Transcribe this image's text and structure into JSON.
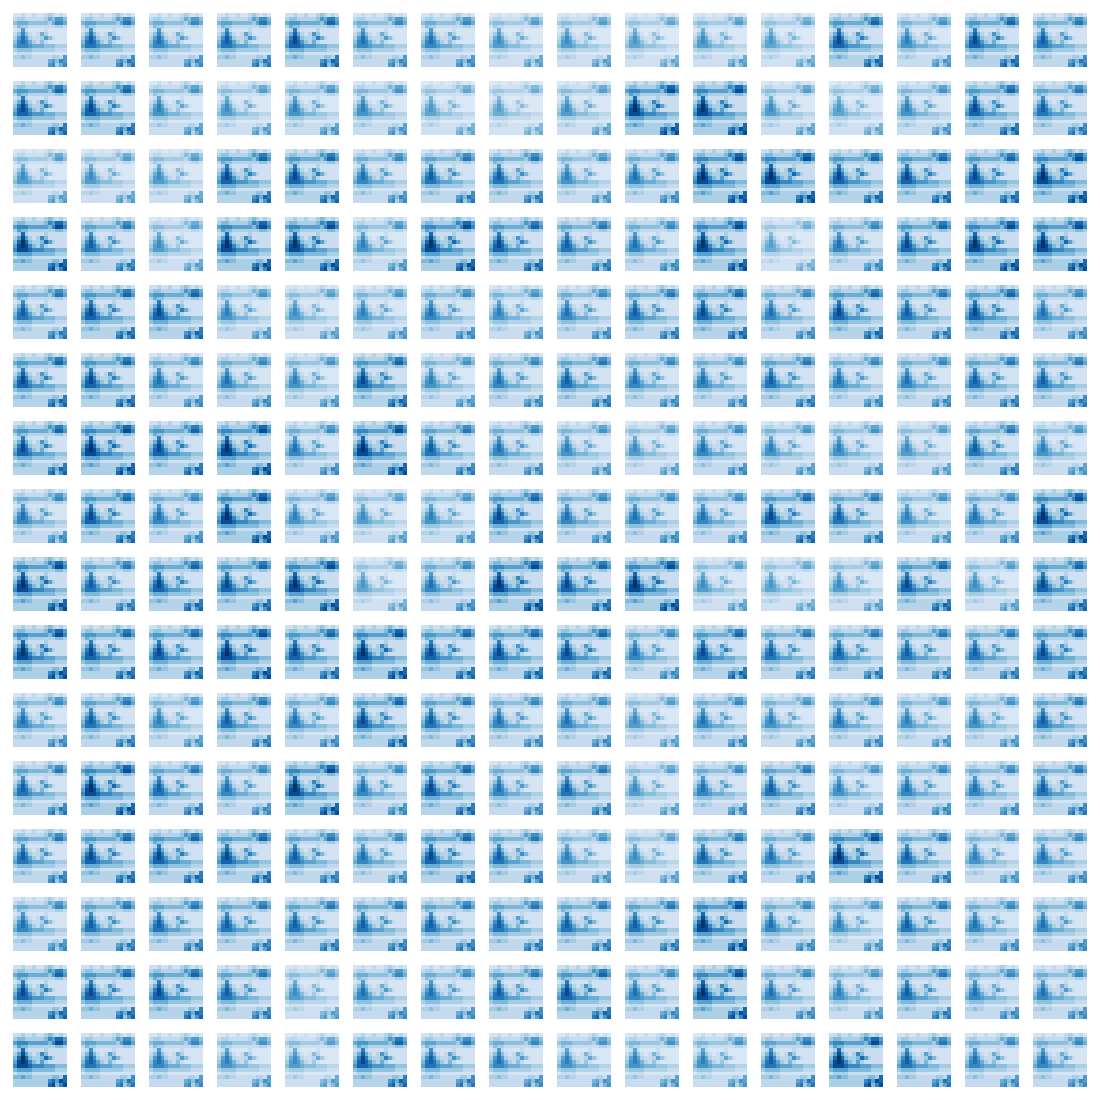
{
  "chart_data": {
    "type": "heatmap",
    "color": "Blues",
    "tick_labels": false,
    "rows": 16,
    "cols": 16,
    "cells": [
      [
        2,
        2,
        3,
        2,
        2,
        3,
        2,
        2,
        3,
        4,
        3,
        2,
        3,
        2
      ],
      [
        3,
        4,
        4,
        3,
        3,
        3,
        3,
        3,
        4,
        6,
        5,
        7,
        7,
        5
      ],
      [
        5,
        6,
        6,
        6,
        5,
        5,
        5,
        5,
        5,
        4,
        6,
        8,
        8,
        6
      ],
      [
        3,
        5,
        4,
        4,
        3,
        3,
        3,
        3,
        3,
        3,
        3,
        4,
        4,
        3
      ],
      [
        2,
        3,
        7,
        3,
        2,
        2,
        2,
        2,
        3,
        2,
        2,
        2,
        2,
        2
      ],
      [
        3,
        5,
        8,
        5,
        3,
        2,
        3,
        6,
        4,
        2,
        2,
        2,
        2,
        2
      ],
      [
        4,
        7,
        9,
        7,
        4,
        3,
        3,
        4,
        7,
        5,
        3,
        2,
        2,
        2
      ],
      [
        5,
        8,
        9,
        8,
        6,
        4,
        3,
        5,
        3,
        2,
        2,
        2,
        2,
        2
      ],
      [
        6,
        8,
        8,
        8,
        7,
        6,
        6,
        6,
        5,
        5,
        5,
        4,
        4,
        4
      ],
      [
        4,
        5,
        5,
        5,
        5,
        4,
        4,
        4,
        4,
        4,
        4,
        3,
        3,
        3
      ],
      [
        2,
        3,
        3,
        3,
        3,
        2,
        2,
        2,
        2,
        2,
        2,
        2,
        2,
        2
      ],
      [
        4,
        4,
        5,
        4,
        4,
        3,
        3,
        3,
        3,
        3,
        4,
        4,
        3,
        7
      ],
      [
        3,
        3,
        3,
        3,
        3,
        3,
        3,
        3,
        3,
        6,
        7,
        5,
        8,
        7
      ],
      [
        3,
        3,
        3,
        3,
        3,
        3,
        3,
        3,
        3,
        7,
        8,
        4,
        6,
        8
      ]
    ],
    "vmin": 0,
    "panel_vmax": [
      12,
      11,
      12,
      11,
      10,
      12,
      12,
      14,
      14,
      15,
      14,
      15,
      10,
      13,
      10,
      11,
      10,
      10,
      13,
      14,
      13,
      13,
      15,
      16,
      14,
      9,
      9,
      14,
      15,
      13,
      10,
      11,
      14,
      14,
      14,
      10,
      10,
      12,
      11,
      11,
      13,
      12,
      9,
      9,
      10,
      10,
      10,
      9,
      9,
      11,
      14,
      9,
      9,
      13,
      9,
      10,
      11,
      12,
      9,
      16,
      12,
      10,
      9,
      9,
      11,
      10,
      10,
      13,
      14,
      13,
      12,
      13,
      12,
      11,
      10,
      12,
      10,
      11,
      10,
      12,
      10,
      10,
      12,
      12,
      13,
      10,
      13,
      12,
      11,
      12,
      12,
      11,
      12,
      12,
      11,
      11,
      10,
      9,
      10,
      9,
      12,
      9,
      11,
      12,
      13,
      14,
      12,
      13,
      13,
      14,
      11,
      13,
      12,
      10,
      12,
      9,
      13,
      14,
      13,
      10,
      12,
      12,
      12,
      10,
      11,
      13,
      12,
      9,
      9,
      11,
      10,
      10,
      9,
      15,
      12,
      9,
      10,
      9,
      14,
      15,
      14,
      10,
      14,
      10,
      9,
      10,
      10,
      9,
      10,
      9,
      10,
      10,
      10,
      12,
      10,
      11,
      11,
      11,
      11,
      10,
      12,
      11,
      13,
      11,
      12,
      10,
      11,
      12,
      12,
      14,
      12,
      13,
      12,
      13,
      13,
      11,
      11,
      9,
      11,
      12,
      9,
      12,
      10,
      12,
      11,
      14,
      12,
      11,
      13,
      12,
      12,
      11,
      11,
      10,
      10,
      10,
      11,
      12,
      10,
      11,
      13,
      14,
      11,
      12,
      9,
      11,
      13,
      12,
      12,
      11,
      11,
      11,
      11,
      11,
      11,
      11,
      11,
      11,
      9,
      12,
      13,
      11,
      12,
      12,
      10,
      10,
      10,
      11,
      14,
      12,
      12,
      11,
      10,
      12,
      9,
      12,
      13,
      11,
      12,
      12,
      9,
      11,
      12,
      13,
      14,
      10,
      11,
      12,
      13,
      13,
      13,
      11,
      9,
      11,
      12,
      12
    ]
  }
}
